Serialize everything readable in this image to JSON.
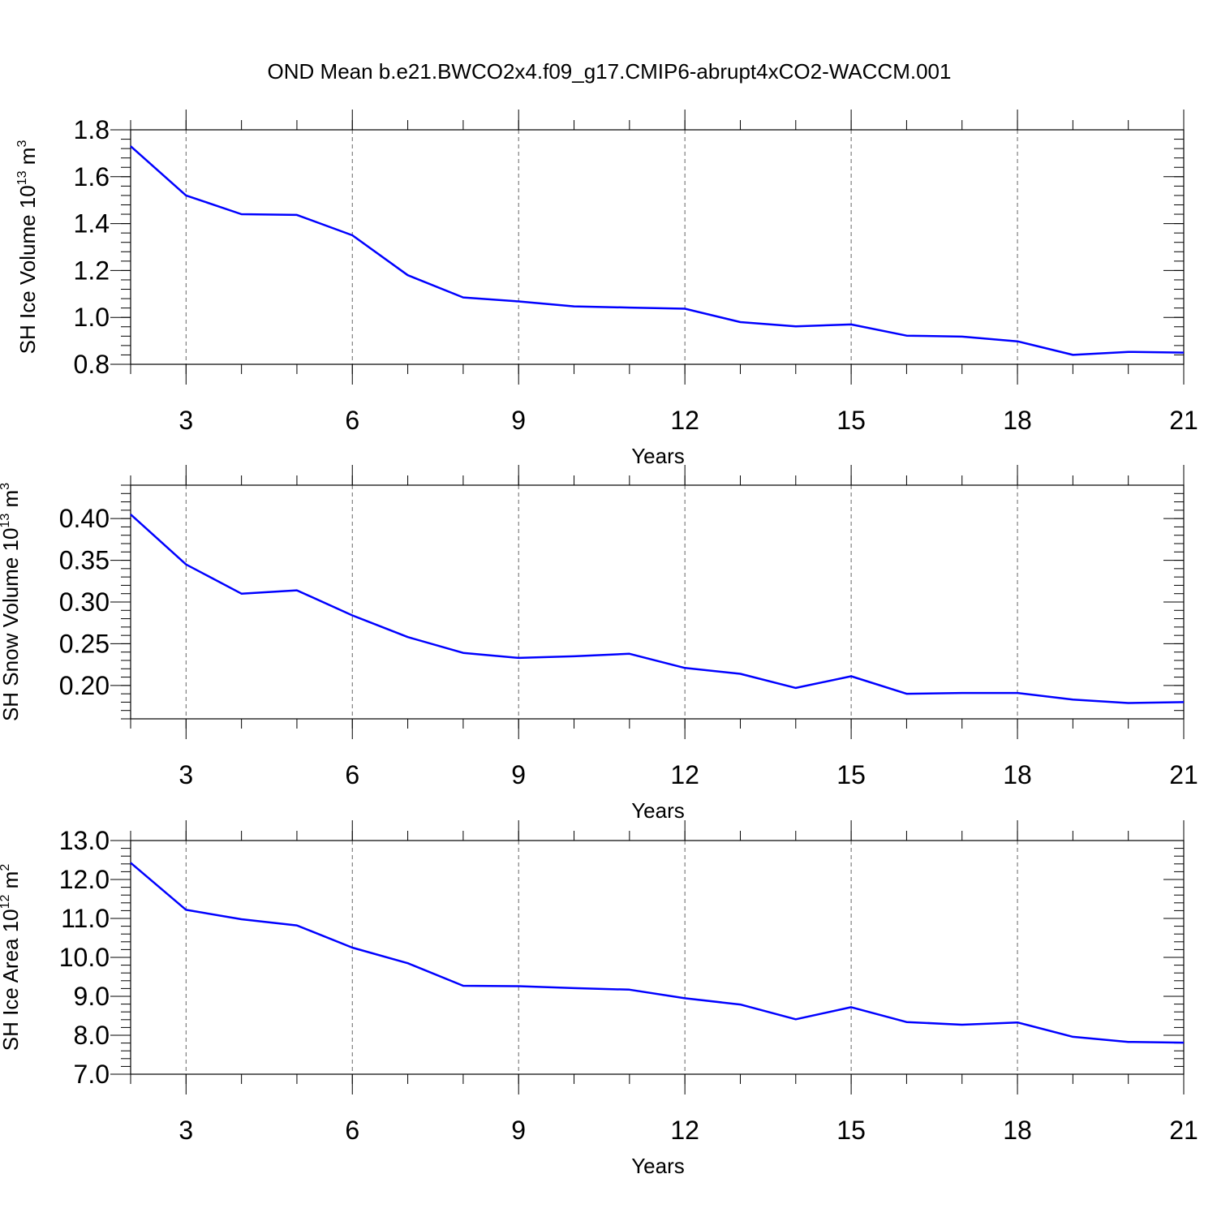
{
  "title": "OND Mean b.e21.BWCO2x4.f09_g17.CMIP6-abrupt4xCO2-WACCM.001",
  "chart_data": [
    {
      "type": "line",
      "xlabel": "Years",
      "ylabel": {
        "text": "SH Ice Volume 10",
        "sup1": "13",
        "mid": " m",
        "sup2": "3"
      },
      "xlim": [
        2,
        21
      ],
      "ylim": [
        0.8,
        1.8
      ],
      "xticks": [
        3,
        6,
        9,
        12,
        15,
        18,
        21
      ],
      "xtick_labels": [
        "3",
        "6",
        "9",
        "12",
        "15",
        "18",
        "21"
      ],
      "yticks": [
        0.8,
        1.0,
        1.2,
        1.4,
        1.6,
        1.8
      ],
      "ytick_labels": [
        "0.8",
        "1.0",
        "1.2",
        "1.4",
        "1.6",
        "1.8"
      ],
      "yminor_step": 0.04,
      "grid": "vertical dashed at major x ticks",
      "color": "#0000ff",
      "x": [
        2,
        3,
        4,
        5,
        6,
        7,
        8,
        9,
        10,
        11,
        12,
        13,
        14,
        15,
        16,
        17,
        18,
        19,
        20,
        21
      ],
      "y": [
        1.73,
        1.52,
        1.44,
        1.437,
        1.35,
        1.18,
        1.085,
        1.068,
        1.047,
        1.042,
        1.037,
        0.98,
        0.962,
        0.97,
        0.922,
        0.918,
        0.898,
        0.84,
        0.853,
        0.85
      ]
    },
    {
      "type": "line",
      "xlabel": "Years",
      "ylabel": {
        "text": "SH Snow Volume 10",
        "sup1": "13",
        "mid": " m",
        "sup2": "3"
      },
      "xlim": [
        2,
        21
      ],
      "ylim": [
        0.16,
        0.44
      ],
      "xticks": [
        3,
        6,
        9,
        12,
        15,
        18,
        21
      ],
      "xtick_labels": [
        "3",
        "6",
        "9",
        "12",
        "15",
        "18",
        "21"
      ],
      "yticks": [
        0.2,
        0.25,
        0.3,
        0.35,
        0.4
      ],
      "ytick_labels": [
        "0.20",
        "0.25",
        "0.30",
        "0.35",
        "0.40"
      ],
      "yminor_step": 0.01,
      "grid": "vertical dashed at major x ticks",
      "color": "#0000ff",
      "x": [
        2,
        3,
        4,
        5,
        6,
        7,
        8,
        9,
        10,
        11,
        12,
        13,
        14,
        15,
        16,
        17,
        18,
        19,
        20,
        21
      ],
      "y": [
        0.405,
        0.345,
        0.31,
        0.314,
        0.284,
        0.258,
        0.239,
        0.233,
        0.235,
        0.238,
        0.221,
        0.214,
        0.197,
        0.211,
        0.19,
        0.191,
        0.191,
        0.183,
        0.179,
        0.18
      ]
    },
    {
      "type": "line",
      "xlabel": "Years",
      "ylabel": {
        "text": "SH Ice Area 10",
        "sup1": "12",
        "mid": " m",
        "sup2": "2"
      },
      "xlim": [
        2,
        21
      ],
      "ylim": [
        7.0,
        13.0
      ],
      "xticks": [
        3,
        6,
        9,
        12,
        15,
        18,
        21
      ],
      "xtick_labels": [
        "3",
        "6",
        "9",
        "12",
        "15",
        "18",
        "21"
      ],
      "yticks": [
        7.0,
        8.0,
        9.0,
        10.0,
        11.0,
        12.0,
        13.0
      ],
      "ytick_labels": [
        "7.0",
        "8.0",
        "9.0",
        "10.0",
        "11.0",
        "12.0",
        "13.0"
      ],
      "yminor_step": 0.2,
      "grid": "vertical dashed at major x ticks",
      "color": "#0000ff",
      "x": [
        2,
        3,
        4,
        5,
        6,
        7,
        8,
        9,
        10,
        11,
        12,
        13,
        14,
        15,
        16,
        17,
        18,
        19,
        20,
        21
      ],
      "y": [
        12.43,
        11.22,
        10.98,
        10.82,
        10.25,
        9.85,
        9.27,
        9.26,
        9.21,
        9.17,
        8.95,
        8.79,
        8.41,
        8.72,
        8.34,
        8.27,
        8.33,
        7.96,
        7.83,
        7.81
      ]
    }
  ]
}
